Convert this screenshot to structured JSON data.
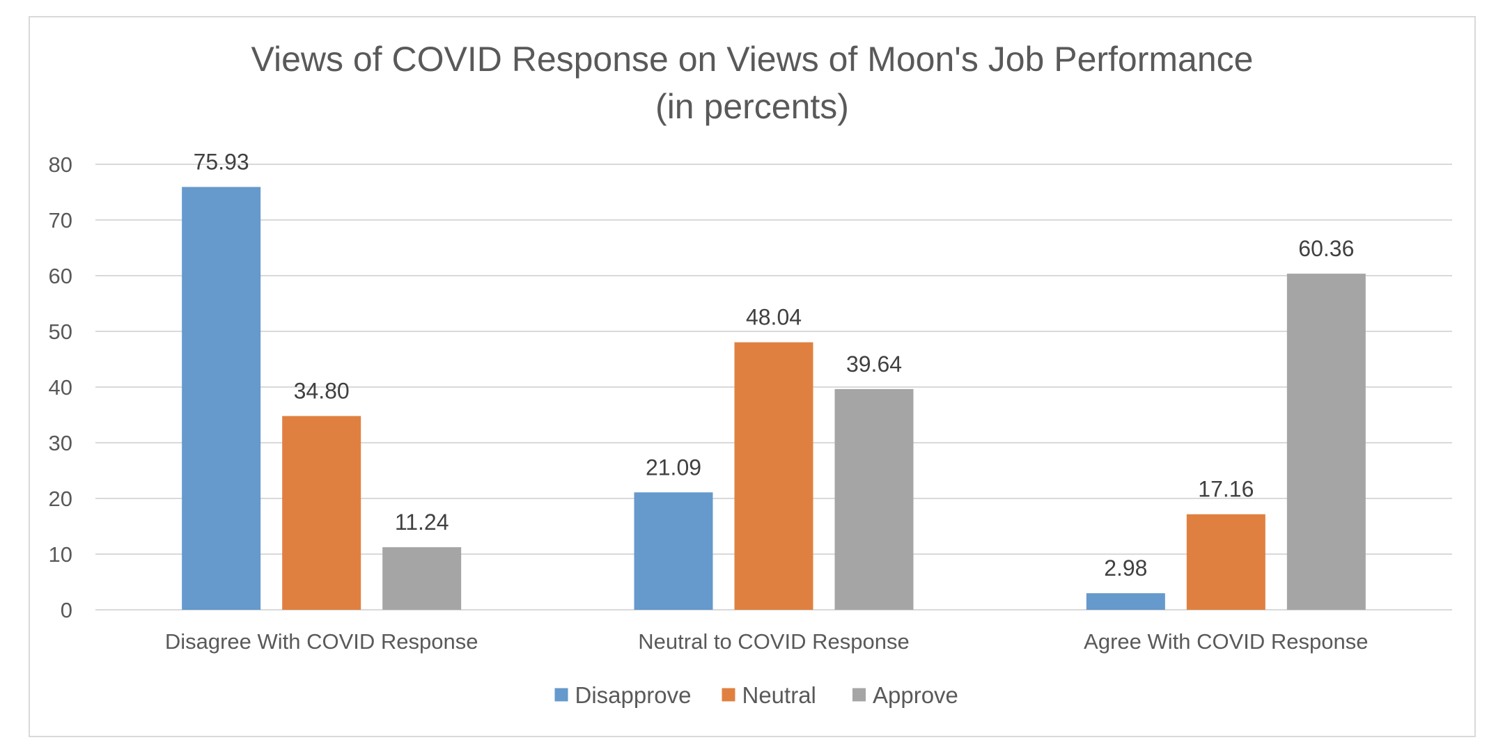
{
  "chart_data": {
    "type": "bar",
    "title": "Views of COVID Response on Views of Moon's Job Performance",
    "subtitle": "(in percents)",
    "categories": [
      "Disagree With COVID Response",
      "Neutral to COVID Response",
      "Agree With COVID Response"
    ],
    "series": [
      {
        "name": "Disapprove",
        "color": "#6699cc",
        "values": [
          75.93,
          21.09,
          2.98
        ],
        "labels": [
          "75.93",
          "21.09",
          "2.98"
        ]
      },
      {
        "name": "Neutral",
        "color": "#e08040",
        "values": [
          34.8,
          48.04,
          17.16
        ],
        "labels": [
          "34.80",
          "48.04",
          "17.16"
        ]
      },
      {
        "name": "Approve",
        "color": "#a5a5a5",
        "values": [
          11.24,
          39.64,
          60.36
        ],
        "labels": [
          "11.24",
          "39.64",
          "60.36"
        ]
      }
    ],
    "xlabel": "",
    "ylabel": "",
    "ylim": [
      0,
      80
    ],
    "yticks": [
      "0",
      "10",
      "20",
      "30",
      "40",
      "50",
      "60",
      "70",
      "80"
    ],
    "grid": true,
    "legend_position": "bottom"
  }
}
